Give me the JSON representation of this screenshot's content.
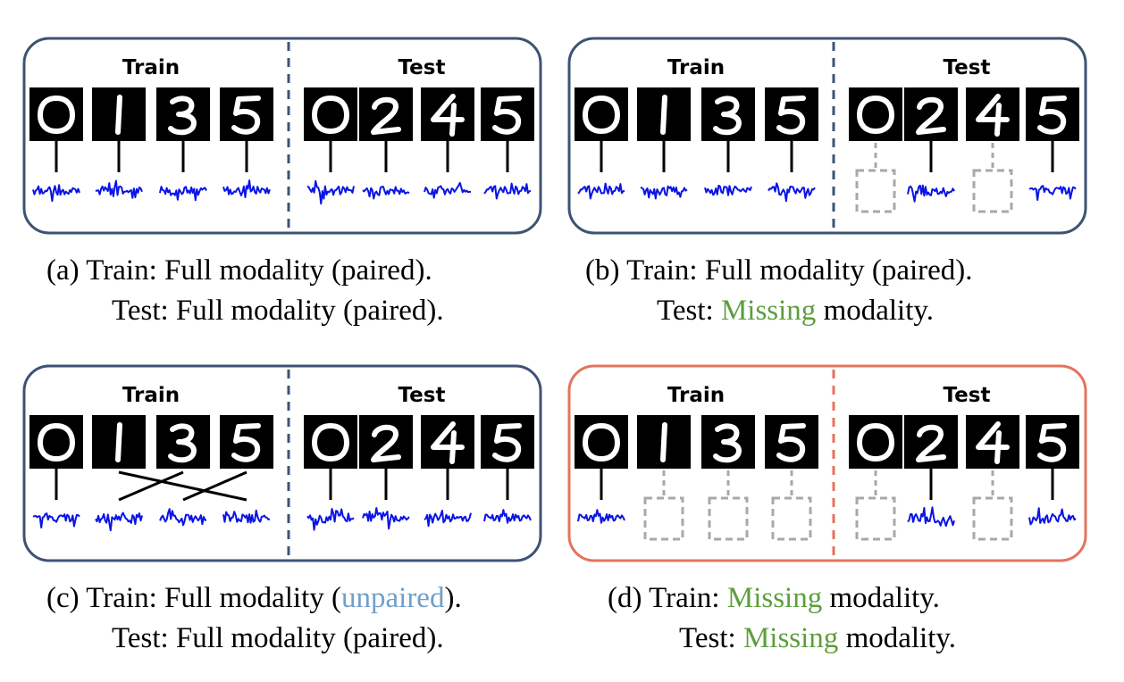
{
  "colors": {
    "panel_border_default": "#3d5374",
    "panel_border_highlight": "#e5735d",
    "waveform": "#0a14e6",
    "missing_modality": "#a8a8a8",
    "missing_text": "#5c9e3c",
    "unpaired_text": "#6f9fc9"
  },
  "panels": [
    {
      "id": "a",
      "train_label": "Train",
      "test_label": "Test",
      "train_digits": [
        "0",
        "1",
        "3",
        "5"
      ],
      "test_digits": [
        "0",
        "2",
        "4",
        "5"
      ],
      "test_audio_missing": [
        false,
        false,
        false,
        false
      ],
      "caption": {
        "line1": [
          {
            "t": "(a) Train: Full modality (paired)."
          }
        ],
        "line2": [
          {
            "t": "Test: Full modality (paired)."
          }
        ]
      }
    },
    {
      "id": "b",
      "train_label": "Train",
      "test_label": "Test",
      "train_digits": [
        "0",
        "1",
        "3",
        "5"
      ],
      "test_digits": [
        "0",
        "2",
        "4",
        "5"
      ],
      "test_audio_missing": [
        true,
        false,
        true,
        false
      ],
      "caption": {
        "line1": [
          {
            "t": "(b) Train: Full modality (paired)."
          }
        ],
        "line2": [
          {
            "t": "Test: "
          },
          {
            "t": "Missing",
            "style": "green"
          },
          {
            "t": " modality."
          }
        ]
      }
    },
    {
      "id": "c",
      "train_label": "Train",
      "test_label": "Test",
      "train_digits": [
        "0",
        "1",
        "3",
        "5"
      ],
      "test_digits": [
        "0",
        "2",
        "4",
        "5"
      ],
      "test_audio_missing": [
        false,
        false,
        false,
        false
      ],
      "caption": {
        "line1": [
          {
            "t": "(c) Train: Full modality ("
          },
          {
            "t": "unpaired",
            "style": "blue"
          },
          {
            "t": ")."
          }
        ],
        "line2": [
          {
            "t": "Test: Full modality (paired)."
          }
        ]
      }
    },
    {
      "id": "d",
      "train_label": "Train",
      "test_label": "Test",
      "train_digits": [
        "0",
        "1",
        "3",
        "5"
      ],
      "test_digits": [
        "0",
        "2",
        "4",
        "5"
      ],
      "train_audio_missing": [
        false,
        true,
        true,
        true
      ],
      "test_audio_missing": [
        true,
        false,
        true,
        false
      ],
      "caption": {
        "line1": [
          {
            "t": "(d) Train: "
          },
          {
            "t": "Missing",
            "style": "green"
          },
          {
            "t": " modality."
          }
        ],
        "line2": [
          {
            "t": "Test: "
          },
          {
            "t": "Missing",
            "style": "green"
          },
          {
            "t": " modality."
          }
        ]
      }
    }
  ]
}
